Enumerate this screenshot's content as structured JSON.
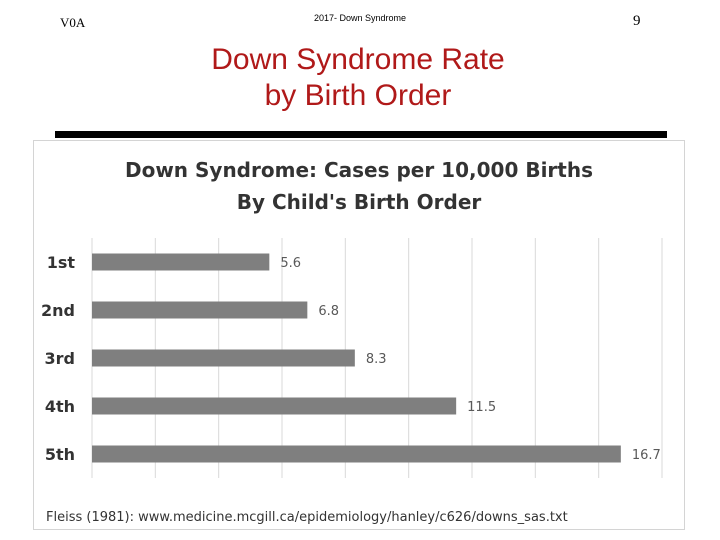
{
  "header": {
    "code": "V0A",
    "course": "2017- Down Syndrome",
    "page_number": "9"
  },
  "slide": {
    "title_line1": "Down Syndrome Rate",
    "title_line2": "by Birth Order"
  },
  "colors": {
    "title": "#b01919",
    "bar": "#7f7f7f",
    "gridline": "#d9d9d9",
    "rule": "#000000"
  },
  "chart_data": {
    "type": "bar",
    "orientation": "horizontal",
    "title_line1": "Down Syndrome: Cases per 10,000 Births",
    "title_line2": "By Child's Birth Order",
    "categories": [
      "1st",
      "2nd",
      "3rd",
      "4th",
      "5th"
    ],
    "values": [
      5.6,
      6.8,
      8.3,
      11.5,
      16.7
    ],
    "value_labels": [
      "5.6",
      "6.8",
      "8.3",
      "11.5",
      "16.7"
    ],
    "xlim": [
      0,
      18
    ],
    "grid": true,
    "source": "Fleiss (1981): www.medicine.mcgill.ca/epidemiology/hanley/c626/downs_sas.txt"
  }
}
